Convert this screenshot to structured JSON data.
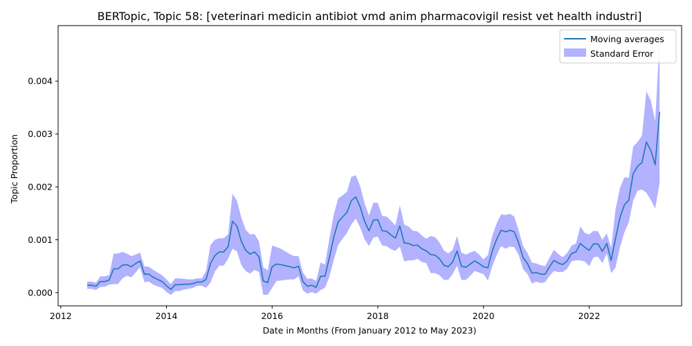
{
  "chart_data": {
    "type": "area",
    "title": "BERTopic, Topic 58: [veterinari medicin antibiot vmd anim pharmacovigil resist vet health industri]",
    "xlabel": "Date in Months (From January 2012 to May 2023)",
    "ylabel": "Topic Proportion",
    "xlim": [
      2011.95,
      2023.75
    ],
    "ylim": [
      -0.00025,
      0.00505
    ],
    "xticks": [
      2012,
      2014,
      2016,
      2018,
      2020,
      2022
    ],
    "xtick_labels": [
      "2012",
      "2014",
      "2016",
      "2018",
      "2020",
      "2022"
    ],
    "yticks": [
      0.0,
      0.001,
      0.002,
      0.003,
      0.004
    ],
    "ytick_labels": [
      "0.000",
      "0.001",
      "0.002",
      "0.003",
      "0.004"
    ],
    "grid": false,
    "legend_position": "top-right",
    "colors": {
      "line": "#1f77b4",
      "band": "#0000ff",
      "band_opacity": 0.3
    },
    "series": [
      {
        "name": "Moving averages",
        "x": [
          2012.5,
          2012.583,
          2012.667,
          2012.75,
          2012.833,
          2012.917,
          2013.0,
          2013.083,
          2013.167,
          2013.25,
          2013.333,
          2013.417,
          2013.5,
          2013.583,
          2013.667,
          2013.75,
          2013.833,
          2013.917,
          2014.0,
          2014.083,
          2014.167,
          2014.25,
          2014.333,
          2014.417,
          2014.5,
          2014.583,
          2014.667,
          2014.75,
          2014.833,
          2014.917,
          2015.0,
          2015.083,
          2015.167,
          2015.25,
          2015.333,
          2015.417,
          2015.5,
          2015.583,
          2015.667,
          2015.75,
          2015.833,
          2015.917,
          2016.0,
          2016.083,
          2016.167,
          2016.25,
          2016.333,
          2016.417,
          2016.5,
          2016.583,
          2016.667,
          2016.75,
          2016.833,
          2016.917,
          2017.0,
          2017.083,
          2017.167,
          2017.25,
          2017.333,
          2017.417,
          2017.5,
          2017.583,
          2017.667,
          2017.75,
          2017.833,
          2017.917,
          2018.0,
          2018.083,
          2018.167,
          2018.25,
          2018.333,
          2018.417,
          2018.5,
          2018.583,
          2018.667,
          2018.75,
          2018.833,
          2018.917,
          2019.0,
          2019.083,
          2019.167,
          2019.25,
          2019.333,
          2019.417,
          2019.5,
          2019.583,
          2019.667,
          2019.75,
          2019.833,
          2019.917,
          2020.0,
          2020.083,
          2020.167,
          2020.25,
          2020.333,
          2020.417,
          2020.5,
          2020.583,
          2020.667,
          2020.75,
          2020.833,
          2020.917,
          2021.0,
          2021.083,
          2021.167,
          2021.25,
          2021.333,
          2021.417,
          2021.5,
          2021.583,
          2021.667,
          2021.75,
          2021.833,
          2021.917,
          2022.0,
          2022.083,
          2022.167,
          2022.25,
          2022.333,
          2022.417,
          2022.5,
          2022.583,
          2022.667,
          2022.75,
          2022.833,
          2022.917,
          2023.0,
          2023.083,
          2023.167,
          2023.25,
          2023.333
        ],
        "values": [
          0.00014,
          0.00014,
          0.00012,
          0.00021,
          0.00021,
          0.00024,
          0.00045,
          0.00045,
          0.00052,
          0.00053,
          0.00049,
          0.00055,
          0.0006,
          0.00035,
          0.00035,
          0.00029,
          0.00025,
          0.00021,
          0.00013,
          6e-05,
          0.00015,
          0.00015,
          0.00016,
          0.00016,
          0.00017,
          0.0002,
          0.0002,
          0.00025,
          0.00055,
          0.0007,
          0.00077,
          0.00077,
          0.00087,
          0.00135,
          0.00126,
          0.00097,
          0.0008,
          0.00073,
          0.00077,
          0.00068,
          0.00022,
          0.00019,
          0.00049,
          0.00054,
          0.00053,
          0.00051,
          0.00049,
          0.00047,
          0.0005,
          0.00021,
          0.00012,
          0.00014,
          0.0001,
          0.00031,
          0.00031,
          0.00066,
          0.00105,
          0.00134,
          0.00143,
          0.00152,
          0.00174,
          0.00181,
          0.00162,
          0.00135,
          0.00117,
          0.00137,
          0.00138,
          0.00117,
          0.00116,
          0.00109,
          0.00103,
          0.00126,
          0.00094,
          0.00093,
          0.00089,
          0.0009,
          0.00083,
          0.00079,
          0.00072,
          0.00071,
          0.00064,
          0.00052,
          0.00049,
          0.00058,
          0.00079,
          0.0005,
          0.00048,
          0.00054,
          0.0006,
          0.00055,
          0.00049,
          0.00047,
          0.00079,
          0.00101,
          0.00118,
          0.00115,
          0.00118,
          0.00115,
          0.00094,
          0.00066,
          0.00055,
          0.00037,
          0.00038,
          0.00035,
          0.00035,
          0.00049,
          0.00061,
          0.00056,
          0.00053,
          0.0006,
          0.00074,
          0.00077,
          0.00093,
          0.00086,
          0.0008,
          0.00092,
          0.00092,
          0.00078,
          0.00093,
          0.00061,
          0.00103,
          0.00142,
          0.00166,
          0.00175,
          0.00225,
          0.00239,
          0.00246,
          0.00285,
          0.00269,
          0.00242,
          0.00342
        ]
      },
      {
        "name": "Standard Error",
        "lower": [
          7e-05,
          7e-05,
          5e-05,
          0.00011,
          0.00011,
          0.00015,
          0.00016,
          0.00016,
          0.00027,
          0.00032,
          0.00029,
          0.00038,
          0.00048,
          0.0002,
          0.00021,
          0.00015,
          0.00012,
          9e-05,
          1e-05,
          -4e-05,
          3e-05,
          3e-05,
          6e-05,
          7e-05,
          9e-05,
          0.00013,
          0.00013,
          9e-05,
          0.00019,
          0.0004,
          0.00051,
          0.00051,
          0.00064,
          0.00083,
          0.00078,
          0.00052,
          0.00041,
          0.00036,
          0.00043,
          0.00039,
          -4e-05,
          -4e-05,
          9e-05,
          0.00022,
          0.00023,
          0.00024,
          0.00025,
          0.00025,
          0.00031,
          4e-05,
          -2e-05,
          1e-05,
          -2e-05,
          5e-05,
          9e-05,
          0.0003,
          0.00062,
          0.0009,
          0.00102,
          0.00113,
          0.00129,
          0.0014,
          0.00123,
          0.00101,
          0.00088,
          0.00104,
          0.00106,
          0.00089,
          0.00088,
          0.00082,
          0.00079,
          0.00087,
          0.00059,
          0.00061,
          0.00061,
          0.00064,
          0.00058,
          0.00056,
          0.00037,
          0.00037,
          0.00033,
          0.00024,
          0.00024,
          0.00035,
          0.00051,
          0.00024,
          0.00024,
          0.00032,
          0.00041,
          0.00038,
          0.00035,
          0.00023,
          0.0005,
          0.00071,
          0.00088,
          0.00083,
          0.00087,
          0.00086,
          0.00071,
          0.00044,
          0.00035,
          0.00017,
          0.00021,
          0.00018,
          0.0002,
          0.00032,
          0.00041,
          0.00039,
          0.00039,
          0.00045,
          0.00059,
          0.00061,
          0.00061,
          0.00059,
          0.0005,
          0.00067,
          0.00068,
          0.00056,
          0.00074,
          0.00037,
          0.00048,
          0.00086,
          0.00114,
          0.00133,
          0.00174,
          0.00193,
          0.00195,
          0.00189,
          0.00175,
          0.00159,
          0.00207
        ],
        "upper": [
          0.00021,
          0.00021,
          0.00019,
          0.00031,
          0.00031,
          0.00033,
          0.00074,
          0.00074,
          0.00077,
          0.00074,
          0.00069,
          0.00072,
          0.00076,
          0.0005,
          0.00049,
          0.00043,
          0.00038,
          0.00033,
          0.00025,
          0.00016,
          0.00027,
          0.00027,
          0.00026,
          0.00025,
          0.00025,
          0.00027,
          0.00027,
          0.00041,
          0.0009,
          0.001,
          0.00103,
          0.00103,
          0.0011,
          0.00187,
          0.00174,
          0.00142,
          0.00119,
          0.0011,
          0.00111,
          0.00097,
          0.00048,
          0.00042,
          0.00089,
          0.00086,
          0.00083,
          0.00078,
          0.00073,
          0.00069,
          0.00069,
          0.00038,
          0.00026,
          0.00027,
          0.00022,
          0.00057,
          0.00053,
          0.00102,
          0.00148,
          0.00178,
          0.00184,
          0.00191,
          0.00219,
          0.00222,
          0.00201,
          0.00169,
          0.00146,
          0.0017,
          0.0017,
          0.00145,
          0.00144,
          0.00136,
          0.00127,
          0.00165,
          0.00129,
          0.00125,
          0.00117,
          0.00116,
          0.00108,
          0.00102,
          0.00107,
          0.00105,
          0.00095,
          0.0008,
          0.00074,
          0.00081,
          0.00107,
          0.00076,
          0.00072,
          0.00076,
          0.00079,
          0.00072,
          0.00063,
          0.00071,
          0.00108,
          0.00131,
          0.00148,
          0.00147,
          0.00149,
          0.00144,
          0.00117,
          0.00088,
          0.00075,
          0.00057,
          0.00055,
          0.00052,
          0.0005,
          0.00066,
          0.00081,
          0.00073,
          0.00067,
          0.00075,
          0.00089,
          0.00093,
          0.00125,
          0.00113,
          0.0011,
          0.00117,
          0.00116,
          0.001,
          0.00112,
          0.00085,
          0.00158,
          0.00198,
          0.00218,
          0.00217,
          0.00276,
          0.00285,
          0.00297,
          0.00381,
          0.00363,
          0.00325,
          0.00477
        ]
      }
    ]
  }
}
